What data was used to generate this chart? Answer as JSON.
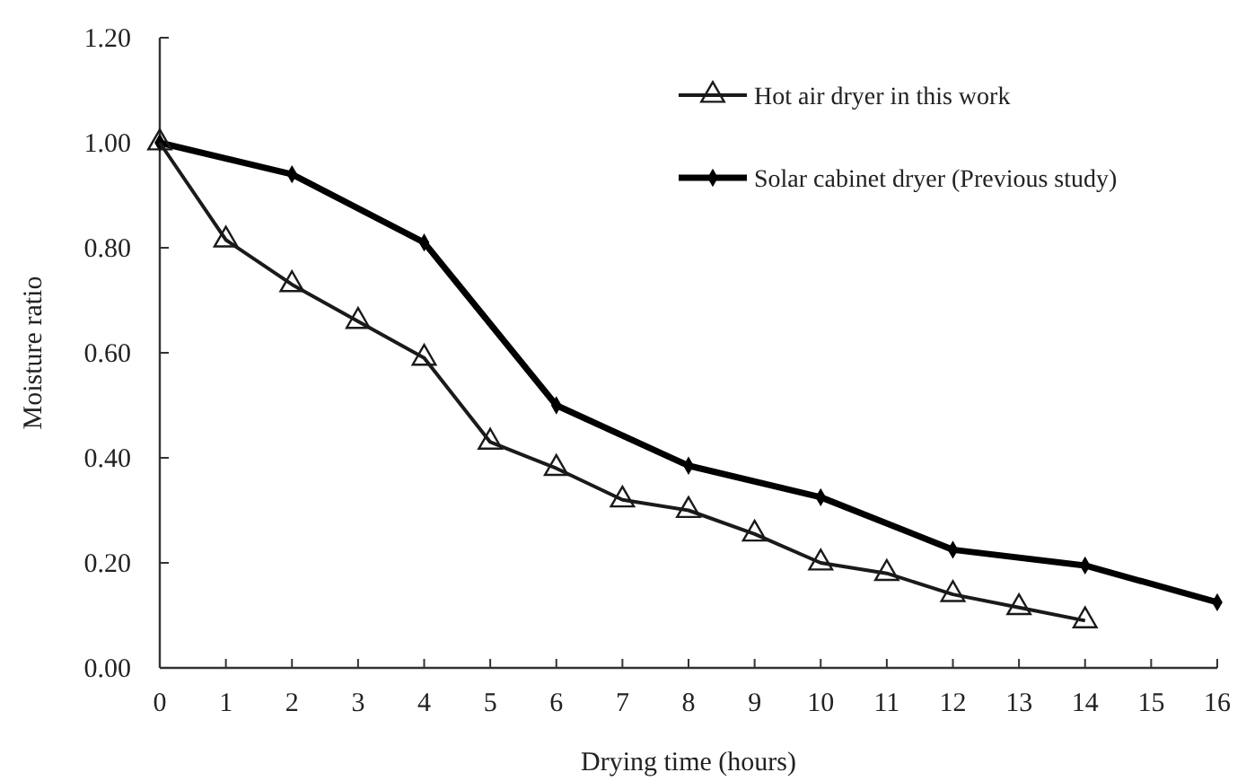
{
  "chart_data": {
    "type": "line",
    "xlabel": "Drying time (hours)",
    "ylabel": "Moisture ratio",
    "xlim": [
      0,
      16
    ],
    "xticks": [
      0,
      1,
      2,
      3,
      4,
      5,
      6,
      7,
      8,
      9,
      10,
      11,
      12,
      13,
      14,
      15,
      16
    ],
    "ylim": [
      0,
      1.2
    ],
    "yticks": [
      {
        "value": 0,
        "label": "0.00"
      },
      {
        "value": 0.2,
        "label": "0.20"
      },
      {
        "value": 0.4,
        "label": "0.40"
      },
      {
        "value": 0.6,
        "label": "0.60"
      },
      {
        "value": 0.8,
        "label": "0.80"
      },
      {
        "value": 1,
        "label": "1.00"
      },
      {
        "value": 1.2,
        "label": "1.20"
      }
    ],
    "grid": false,
    "legend": "top right",
    "series": [
      {
        "name": "Hot air dryer in this work",
        "color": "#1a1a1a",
        "marker": "triangle",
        "x": [
          0,
          1,
          2,
          3,
          4,
          5,
          6,
          7,
          8,
          9,
          10,
          11,
          12,
          13,
          14
        ],
        "values": [
          1.0,
          0.815,
          0.73,
          0.66,
          0.59,
          0.43,
          0.38,
          0.32,
          0.3,
          0.255,
          0.2,
          0.18,
          0.14,
          0.115,
          0.09
        ]
      },
      {
        "name": "Solar cabinet dryer (Previous study)",
        "color": "#000000",
        "marker": "diamond",
        "x": [
          0,
          2,
          4,
          6,
          8,
          10,
          12,
          14,
          16
        ],
        "values": [
          1.0,
          0.94,
          0.81,
          0.5,
          0.385,
          0.325,
          0.225,
          0.195,
          0.125
        ]
      }
    ]
  }
}
